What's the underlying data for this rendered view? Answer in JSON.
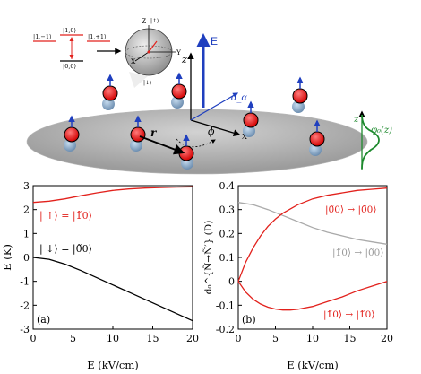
{
  "schematic": {
    "level_left": "|1,−1⟩",
    "level_right": "|1,+1⟩",
    "level_mid": "|1,0⟩",
    "level_ground": "|0,0⟩",
    "sphere_z": "Z",
    "sphere_up": "|↑⟩",
    "sphere_down": "|↓⟩",
    "sphere_x": "X",
    "sphere_y": "Y",
    "field_label": "E",
    "axis_z": "z",
    "axis_x": "x",
    "angle_phi": "ϕ",
    "dipole_label": "d_α",
    "distance_label": "r",
    "profile_z": "z",
    "profile_label": "φ₀(z)"
  },
  "chart_data": [
    {
      "type": "line",
      "panel": "(a)",
      "xlabel": "E (kV/cm)",
      "ylabel": "E (K)",
      "xlim": [
        0,
        20
      ],
      "ylim": [
        -3,
        3
      ],
      "xticks": [
        0,
        5,
        10,
        15,
        20
      ],
      "yticks": [
        -3,
        -2,
        -1,
        0,
        1,
        2,
        3
      ],
      "grid": false,
      "annotations": [
        "| ↑⟩ = |1̃0⟩",
        "| ↓⟩ = |0̃0⟩"
      ],
      "series": [
        {
          "color": "#e2211c",
          "x": [
            0,
            2,
            4,
            6,
            8,
            10,
            12,
            14,
            16,
            18,
            20
          ],
          "y": [
            2.3,
            2.35,
            2.45,
            2.58,
            2.7,
            2.8,
            2.86,
            2.9,
            2.92,
            2.94,
            2.95
          ]
        },
        {
          "color": "#000000",
          "x": [
            0,
            2,
            4,
            6,
            8,
            10,
            12,
            14,
            16,
            18,
            20
          ],
          "y": [
            0.0,
            -0.08,
            -0.28,
            -0.55,
            -0.85,
            -1.15,
            -1.45,
            -1.75,
            -2.05,
            -2.35,
            -2.65
          ]
        }
      ]
    },
    {
      "type": "line",
      "panel": "(b)",
      "xlabel": "E (kV/cm)",
      "ylabel": "d₀^{Ñ→Ñ′} (D)",
      "xlim": [
        0,
        20
      ],
      "ylim": [
        -0.2,
        0.4
      ],
      "xticks": [
        0,
        5,
        10,
        15,
        20
      ],
      "yticks": [
        -0.2,
        -0.1,
        0,
        0.1,
        0.2,
        0.3,
        0.4
      ],
      "grid": false,
      "annotations": [
        "|0̃0⟩ → |0̃0⟩",
        "|1̃0⟩ → |0̃0⟩",
        "|1̃0⟩ → |1̃0⟩"
      ],
      "series": [
        {
          "color": "#e2211c",
          "x": [
            0,
            1,
            2,
            3,
            4,
            5,
            6,
            8,
            10,
            12,
            14,
            16,
            18,
            20
          ],
          "y": [
            0.0,
            0.08,
            0.14,
            0.19,
            0.23,
            0.26,
            0.285,
            0.32,
            0.345,
            0.36,
            0.37,
            0.38,
            0.385,
            0.39
          ]
        },
        {
          "color": "#aaaaaa",
          "x": [
            0,
            2,
            4,
            6,
            8,
            10,
            12,
            14,
            16,
            18,
            20
          ],
          "y": [
            0.33,
            0.32,
            0.3,
            0.275,
            0.25,
            0.225,
            0.205,
            0.19,
            0.175,
            0.165,
            0.155
          ]
        },
        {
          "color": "#e2211c",
          "x": [
            0,
            1,
            2,
            3,
            4,
            5,
            6,
            7,
            8,
            10,
            12,
            14,
            16,
            18,
            20
          ],
          "y": [
            0.0,
            -0.045,
            -0.075,
            -0.095,
            -0.108,
            -0.116,
            -0.12,
            -0.12,
            -0.117,
            -0.105,
            -0.085,
            -0.065,
            -0.04,
            -0.02,
            0.0
          ]
        }
      ]
    }
  ]
}
